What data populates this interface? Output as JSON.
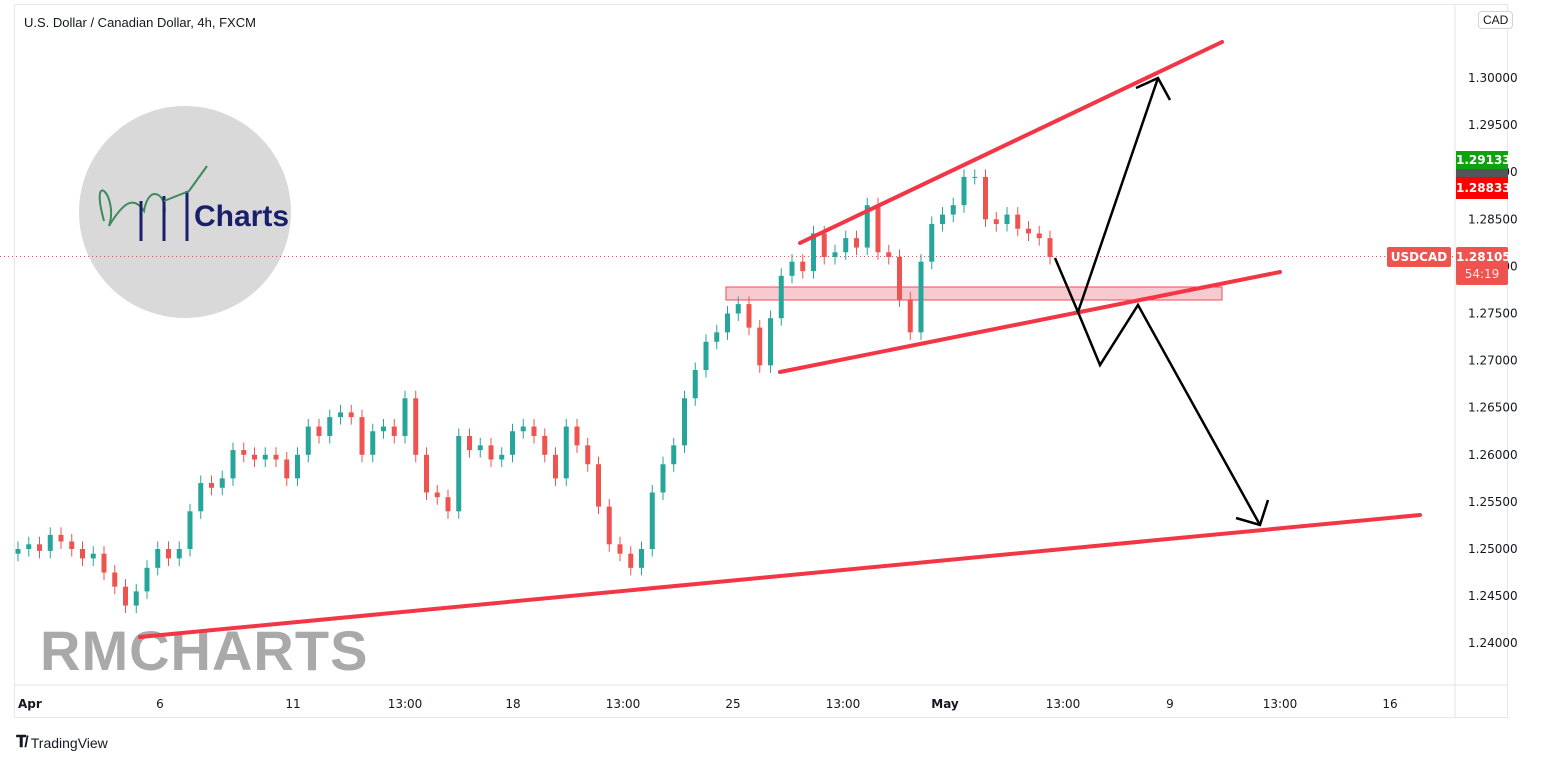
{
  "header": {
    "title": "U.S. Dollar / Canadian Dollar, 4h, FXCM",
    "currency_button": "CAD"
  },
  "price_tags": {
    "high_label": "1.29133",
    "high_color": "#0ea30e",
    "low_label": "1.28833",
    "low_color": "#ff0000",
    "symbol": "USDCAD",
    "last_price": "1.28105",
    "countdown": "54:19",
    "last_color": "#ef5350"
  },
  "logo": {
    "text": "Charts"
  },
  "watermark": "RMCHARTS",
  "footer": {
    "brand": "TradingView"
  },
  "chart_data": {
    "type": "candlestick",
    "title": "U.S. Dollar / Canadian Dollar, 4h, FXCM",
    "ylim": [
      1.2345,
      1.3055
    ],
    "y_ticks": [
      "1.30000",
      "1.29500",
      "1.29000",
      "1.28500",
      "1.28000",
      "1.27500",
      "1.27000",
      "1.26500",
      "1.26000",
      "1.25500",
      "1.25000",
      "1.24500",
      "1.24000"
    ],
    "x_ticks": [
      "Apr",
      "6",
      "11",
      "13:00",
      "18",
      "13:00",
      "25",
      "13:00",
      "May",
      "13:00",
      "9",
      "13:00",
      "16"
    ],
    "grid": false,
    "up_color": "#26a69a",
    "down_color": "#ef5350",
    "closes": [
      1.25,
      1.2505,
      1.2498,
      1.2515,
      1.2508,
      1.25,
      1.249,
      1.2495,
      1.2475,
      1.246,
      1.244,
      1.2455,
      1.248,
      1.25,
      1.249,
      1.25,
      1.254,
      1.257,
      1.2565,
      1.2575,
      1.2605,
      1.26,
      1.2595,
      1.26,
      1.2595,
      1.2575,
      1.26,
      1.263,
      1.262,
      1.264,
      1.2645,
      1.264,
      1.26,
      1.2625,
      1.263,
      1.262,
      1.266,
      1.26,
      1.256,
      1.2555,
      1.254,
      1.262,
      1.2605,
      1.261,
      1.2595,
      1.26,
      1.2625,
      1.263,
      1.262,
      1.26,
      1.2575,
      1.263,
      1.261,
      1.259,
      1.2545,
      1.2505,
      1.2495,
      1.248,
      1.25,
      1.256,
      1.259,
      1.261,
      1.266,
      1.269,
      1.272,
      1.273,
      1.275,
      1.276,
      1.2735,
      1.2695,
      1.2745,
      1.279,
      1.2805,
      1.2795,
      1.2835,
      1.281,
      1.2815,
      1.283,
      1.282,
      1.2865,
      1.2815,
      1.281,
      1.2765,
      1.273,
      1.2805,
      1.2845,
      1.2855,
      1.2865,
      1.2895,
      1.2895,
      1.285,
      1.2845,
      1.2855,
      1.284,
      1.2835,
      1.283,
      1.281
    ],
    "current_price": 1.28105,
    "drawings": {
      "line_color": "#f23645",
      "arrow_color": "#000000",
      "zone_color": "#f7c5cb"
    }
  }
}
